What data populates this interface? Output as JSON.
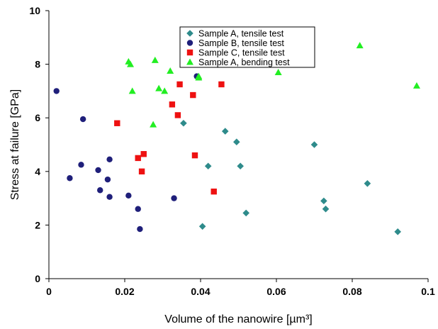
{
  "chart_data": {
    "type": "scatter",
    "title": "",
    "xlabel": "Volume of the nanowire [µm³]",
    "ylabel": "Stress at failure [GPa]",
    "xlim": [
      0,
      0.1
    ],
    "ylim": [
      0,
      10
    ],
    "x_ticks": [
      "0",
      "0.02",
      "0.04",
      "0.06",
      "0.08",
      "0.1"
    ],
    "y_ticks": [
      "0",
      "2",
      "4",
      "6",
      "8",
      "10"
    ],
    "grid": false,
    "legend_position": "top-center",
    "series": [
      {
        "name": "Sample A, tensile test",
        "marker": "diamond",
        "color": "#2E8B8B",
        "points": [
          [
            0.0355,
            5.8
          ],
          [
            0.042,
            4.2
          ],
          [
            0.0405,
            1.95
          ],
          [
            0.0465,
            5.5
          ],
          [
            0.0495,
            5.1
          ],
          [
            0.0505,
            4.2
          ],
          [
            0.052,
            2.45
          ],
          [
            0.07,
            5.0
          ],
          [
            0.0725,
            2.9
          ],
          [
            0.073,
            2.6
          ],
          [
            0.084,
            3.55
          ],
          [
            0.092,
            1.75
          ]
        ]
      },
      {
        "name": "Sample B, tensile test",
        "marker": "circle",
        "color": "#1F1F7A",
        "points": [
          [
            0.002,
            7.0
          ],
          [
            0.0055,
            3.75
          ],
          [
            0.0085,
            4.25
          ],
          [
            0.009,
            5.95
          ],
          [
            0.013,
            4.05
          ],
          [
            0.0135,
            3.3
          ],
          [
            0.0155,
            3.7
          ],
          [
            0.016,
            4.45
          ],
          [
            0.016,
            3.05
          ],
          [
            0.021,
            3.1
          ],
          [
            0.0235,
            2.6
          ],
          [
            0.024,
            1.85
          ],
          [
            0.033,
            3.0
          ],
          [
            0.039,
            7.55
          ]
        ]
      },
      {
        "name": "Sample C, tensile test",
        "marker": "square",
        "color": "#EE1111",
        "points": [
          [
            0.018,
            5.8
          ],
          [
            0.0235,
            4.5
          ],
          [
            0.0245,
            4.0
          ],
          [
            0.025,
            4.65
          ],
          [
            0.0325,
            6.5
          ],
          [
            0.034,
            6.1
          ],
          [
            0.0345,
            7.25
          ],
          [
            0.038,
            6.85
          ],
          [
            0.0385,
            4.6
          ],
          [
            0.0435,
            3.25
          ],
          [
            0.0455,
            7.25
          ]
        ]
      },
      {
        "name": "Sample A, bending test",
        "marker": "triangle",
        "color": "#22EE22",
        "points": [
          [
            0.021,
            8.1
          ],
          [
            0.0215,
            8.0
          ],
          [
            0.022,
            7.0
          ],
          [
            0.0275,
            5.75
          ],
          [
            0.028,
            8.15
          ],
          [
            0.029,
            7.1
          ],
          [
            0.0305,
            7.0
          ],
          [
            0.032,
            7.75
          ],
          [
            0.0395,
            7.55
          ],
          [
            0.0395,
            7.5
          ],
          [
            0.0605,
            7.7
          ],
          [
            0.082,
            8.7
          ],
          [
            0.097,
            7.2
          ]
        ]
      }
    ]
  }
}
